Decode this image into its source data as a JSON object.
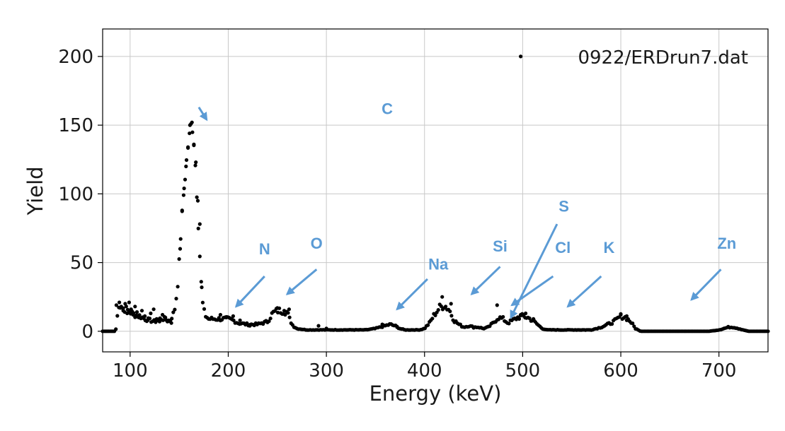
{
  "chart_data": {
    "type": "scatter",
    "title": "",
    "xlabel": "Energy (keV)",
    "ylabel": "Yield",
    "xlim": [
      72,
      750
    ],
    "ylim": [
      -15,
      220
    ],
    "xticks": [
      100,
      200,
      300,
      400,
      500,
      600,
      700
    ],
    "yticks": [
      0,
      50,
      100,
      150,
      200
    ],
    "grid": true,
    "legend": {
      "position": "top-right",
      "label": "0922/ERDrun7.dat"
    },
    "series": [
      {
        "name": "0922/ERDrun7.dat",
        "color": "#000000",
        "profile": [
          [
            72,
            0
          ],
          [
            84,
            0
          ],
          [
            86,
            2
          ],
          [
            88,
            20
          ],
          [
            92,
            17
          ],
          [
            96,
            16
          ],
          [
            100,
            14
          ],
          [
            105,
            12
          ],
          [
            110,
            11
          ],
          [
            115,
            9
          ],
          [
            120,
            8
          ],
          [
            125,
            7
          ],
          [
            130,
            9
          ],
          [
            135,
            9
          ],
          [
            140,
            7
          ],
          [
            145,
            14
          ],
          [
            148,
            30
          ],
          [
            150,
            50
          ],
          [
            152,
            75
          ],
          [
            154,
            95
          ],
          [
            156,
            112
          ],
          [
            158,
            128
          ],
          [
            160,
            140
          ],
          [
            162,
            150
          ],
          [
            164,
            146
          ],
          [
            166,
            128
          ],
          [
            168,
            100
          ],
          [
            170,
            70
          ],
          [
            172,
            40
          ],
          [
            174,
            20
          ],
          [
            176,
            12
          ],
          [
            180,
            9
          ],
          [
            190,
            9
          ],
          [
            200,
            9
          ],
          [
            205,
            8
          ],
          [
            210,
            6
          ],
          [
            220,
            5
          ],
          [
            230,
            5
          ],
          [
            240,
            7
          ],
          [
            245,
            13
          ],
          [
            250,
            15
          ],
          [
            255,
            15
          ],
          [
            260,
            14
          ],
          [
            263,
            8
          ],
          [
            266,
            4
          ],
          [
            270,
            2
          ],
          [
            280,
            1
          ],
          [
            290,
            1
          ],
          [
            300,
            1
          ],
          [
            340,
            1
          ],
          [
            350,
            2
          ],
          [
            360,
            4
          ],
          [
            365,
            5
          ],
          [
            370,
            4
          ],
          [
            375,
            2
          ],
          [
            380,
            1
          ],
          [
            395,
            1
          ],
          [
            400,
            2
          ],
          [
            405,
            6
          ],
          [
            410,
            12
          ],
          [
            415,
            17
          ],
          [
            420,
            19
          ],
          [
            425,
            16
          ],
          [
            430,
            8
          ],
          [
            435,
            5
          ],
          [
            440,
            3
          ],
          [
            445,
            4
          ],
          [
            450,
            3
          ],
          [
            455,
            3
          ],
          [
            460,
            2
          ],
          [
            465,
            3
          ],
          [
            470,
            6
          ],
          [
            475,
            10
          ],
          [
            480,
            9
          ],
          [
            485,
            6
          ],
          [
            490,
            8
          ],
          [
            495,
            10
          ],
          [
            500,
            11
          ],
          [
            505,
            10
          ],
          [
            510,
            8
          ],
          [
            515,
            5
          ],
          [
            520,
            2
          ],
          [
            525,
            1
          ],
          [
            530,
            1
          ],
          [
            560,
            1
          ],
          [
            570,
            1
          ],
          [
            580,
            3
          ],
          [
            590,
            6
          ],
          [
            595,
            8
          ],
          [
            600,
            11
          ],
          [
            605,
            10
          ],
          [
            610,
            7
          ],
          [
            615,
            2
          ],
          [
            620,
            0
          ],
          [
            690,
            0
          ],
          [
            700,
            1
          ],
          [
            705,
            2
          ],
          [
            710,
            3
          ],
          [
            715,
            3
          ],
          [
            720,
            2
          ],
          [
            725,
            1
          ],
          [
            730,
            0
          ],
          [
            750,
            0
          ]
        ],
        "scatter": [
          [
            86,
            19
          ],
          [
            89,
            21
          ],
          [
            91,
            18
          ],
          [
            93,
            15
          ],
          [
            95,
            20
          ],
          [
            97,
            13
          ],
          [
            99,
            21
          ],
          [
            101,
            16
          ],
          [
            103,
            12
          ],
          [
            105,
            18
          ],
          [
            107,
            14
          ],
          [
            109,
            10
          ],
          [
            112,
            15
          ],
          [
            115,
            11
          ],
          [
            118,
            8
          ],
          [
            121,
            13
          ],
          [
            124,
            16
          ],
          [
            127,
            9
          ],
          [
            130,
            7
          ],
          [
            133,
            12
          ],
          [
            136,
            10
          ],
          [
            139,
            8
          ],
          [
            142,
            6
          ],
          [
            151,
            60
          ],
          [
            153,
            88
          ],
          [
            155,
            104
          ],
          [
            157,
            120
          ],
          [
            159,
            134
          ],
          [
            161,
            150
          ],
          [
            163,
            152
          ],
          [
            165,
            136
          ],
          [
            167,
            123
          ],
          [
            169,
            95
          ],
          [
            171,
            78
          ],
          [
            173,
            32
          ],
          [
            192,
            12
          ],
          [
            198,
            10
          ],
          [
            205,
            11
          ],
          [
            212,
            8
          ],
          [
            222,
            4
          ],
          [
            234,
            6
          ],
          [
            250,
            17
          ],
          [
            257,
            15
          ],
          [
            262,
            16
          ],
          [
            292,
            4
          ],
          [
            300,
            2
          ],
          [
            357,
            5
          ],
          [
            372,
            3
          ],
          [
            418,
            25
          ],
          [
            427,
            20
          ],
          [
            474,
            19
          ],
          [
            498,
            12
          ],
          [
            503,
            13
          ],
          [
            511,
            9
          ],
          [
            600,
            12
          ],
          [
            606,
            11
          ],
          [
            498,
            200
          ]
        ]
      }
    ],
    "annotations": [
      {
        "label": "C",
        "text_at": [
          362,
          158
        ],
        "arrow_from": [
          170,
          163
        ],
        "arrow_to": [
          178,
          154
        ]
      },
      {
        "label": "N",
        "text_at": [
          237,
          56
        ],
        "arrow_from": [
          237,
          40
        ],
        "arrow_to": [
          208,
          18
        ]
      },
      {
        "label": "O",
        "text_at": [
          290,
          60
        ],
        "arrow_from": [
          290,
          45
        ],
        "arrow_to": [
          260,
          27
        ]
      },
      {
        "label": "Na",
        "text_at": [
          414,
          45
        ],
        "arrow_from": [
          403,
          38
        ],
        "arrow_to": [
          372,
          16
        ]
      },
      {
        "label": "Si",
        "text_at": [
          477,
          58
        ],
        "arrow_from": [
          477,
          47
        ],
        "arrow_to": [
          448,
          27
        ]
      },
      {
        "label": "S",
        "text_at": [
          542,
          87
        ],
        "arrow_from": [
          535,
          78
        ],
        "arrow_to": [
          488,
          10
        ]
      },
      {
        "label": "Cl",
        "text_at": [
          541,
          57
        ],
        "arrow_from": [
          531,
          40
        ],
        "arrow_to": [
          489,
          19
        ]
      },
      {
        "label": "K",
        "text_at": [
          588,
          57
        ],
        "arrow_from": [
          580,
          40
        ],
        "arrow_to": [
          546,
          18
        ]
      },
      {
        "label": "Zn",
        "text_at": [
          708,
          60
        ],
        "arrow_from": [
          702,
          45
        ],
        "arrow_to": [
          672,
          23
        ]
      },
      {
        "label": "??",
        "text_at": [
          800,
          62
        ],
        "arrow_from": [
          795,
          40
        ],
        "arrow_to": [
          808,
          14
        ]
      }
    ]
  }
}
